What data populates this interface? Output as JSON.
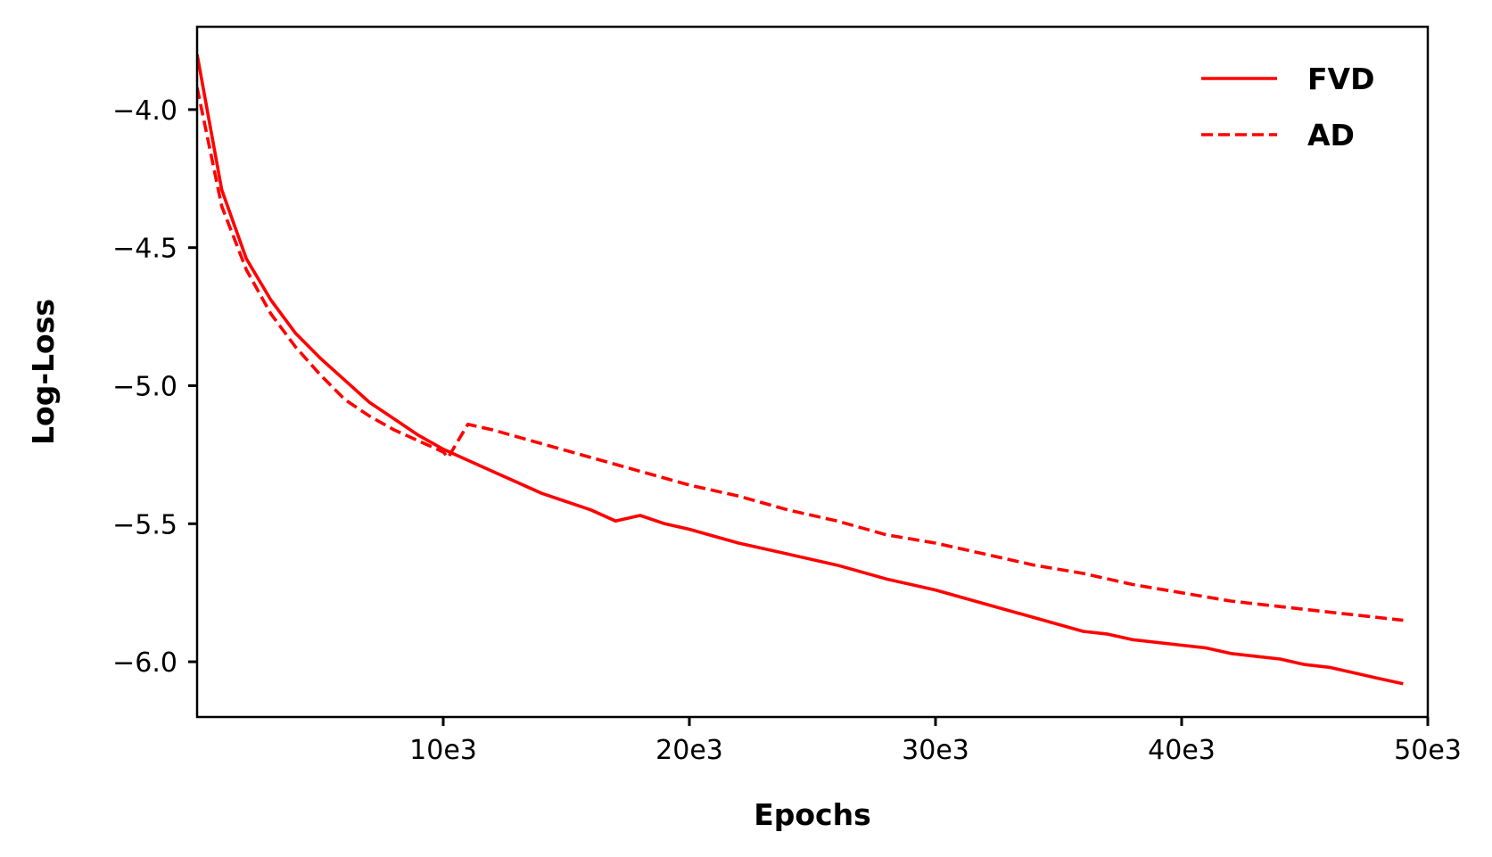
{
  "chart_data": {
    "type": "line",
    "title": "",
    "xlabel": "Epochs",
    "ylabel": "Log-Loss",
    "xlim": [
      0,
      50000
    ],
    "ylim": [
      -6.2,
      -3.7
    ],
    "x_ticks": [
      {
        "value": 10000,
        "label": "10e3"
      },
      {
        "value": 20000,
        "label": "20e3"
      },
      {
        "value": 30000,
        "label": "30e3"
      },
      {
        "value": 40000,
        "label": "40e3"
      },
      {
        "value": 50000,
        "label": "50e3"
      }
    ],
    "y_ticks": [
      {
        "value": -4.0,
        "label": "−4.0"
      },
      {
        "value": -4.5,
        "label": "−4.5"
      },
      {
        "value": -5.0,
        "label": "−5.0"
      },
      {
        "value": -5.5,
        "label": "−5.5"
      },
      {
        "value": -6.0,
        "label": "−6.0"
      }
    ],
    "grid": false,
    "legend_position": "top-right",
    "series": [
      {
        "name": "FVD",
        "color": "#ff0000",
        "style": "solid",
        "x": [
          0,
          1000,
          2000,
          3000,
          4000,
          5000,
          6000,
          7000,
          8000,
          9000,
          10000,
          11000,
          12000,
          13000,
          14000,
          15000,
          16000,
          17000,
          18000,
          19000,
          20000,
          22000,
          24000,
          26000,
          28000,
          30000,
          32000,
          34000,
          36000,
          37000,
          38000,
          40000,
          41000,
          42000,
          43000,
          44000,
          45000,
          46000,
          47000,
          48000,
          49000
        ],
        "y": [
          -3.8,
          -4.29,
          -4.54,
          -4.69,
          -4.81,
          -4.9,
          -4.98,
          -5.06,
          -5.12,
          -5.18,
          -5.23,
          -5.27,
          -5.31,
          -5.35,
          -5.39,
          -5.42,
          -5.45,
          -5.49,
          -5.47,
          -5.5,
          -5.52,
          -5.57,
          -5.61,
          -5.65,
          -5.7,
          -5.74,
          -5.79,
          -5.84,
          -5.89,
          -5.9,
          -5.92,
          -5.94,
          -5.95,
          -5.97,
          -5.98,
          -5.99,
          -6.01,
          -6.02,
          -6.04,
          -6.06,
          -6.08
        ]
      },
      {
        "name": "AD",
        "color": "#ff0000",
        "style": "dashed",
        "x": [
          0,
          1000,
          2000,
          3000,
          4000,
          5000,
          6000,
          7000,
          8000,
          9000,
          10000,
          10200,
          11000,
          12000,
          14000,
          16000,
          18000,
          20000,
          22000,
          24000,
          26000,
          28000,
          30000,
          32000,
          34000,
          36000,
          38000,
          40000,
          42000,
          44000,
          45000,
          46000,
          47000,
          48000,
          49000
        ],
        "y": [
          -3.92,
          -4.35,
          -4.58,
          -4.74,
          -4.86,
          -4.96,
          -5.05,
          -5.11,
          -5.16,
          -5.2,
          -5.24,
          -5.26,
          -5.14,
          -5.16,
          -5.21,
          -5.26,
          -5.31,
          -5.36,
          -5.4,
          -5.45,
          -5.49,
          -5.54,
          -5.57,
          -5.61,
          -5.65,
          -5.68,
          -5.72,
          -5.75,
          -5.78,
          -5.8,
          -5.81,
          -5.82,
          -5.83,
          -5.84,
          -5.85
        ]
      }
    ]
  }
}
